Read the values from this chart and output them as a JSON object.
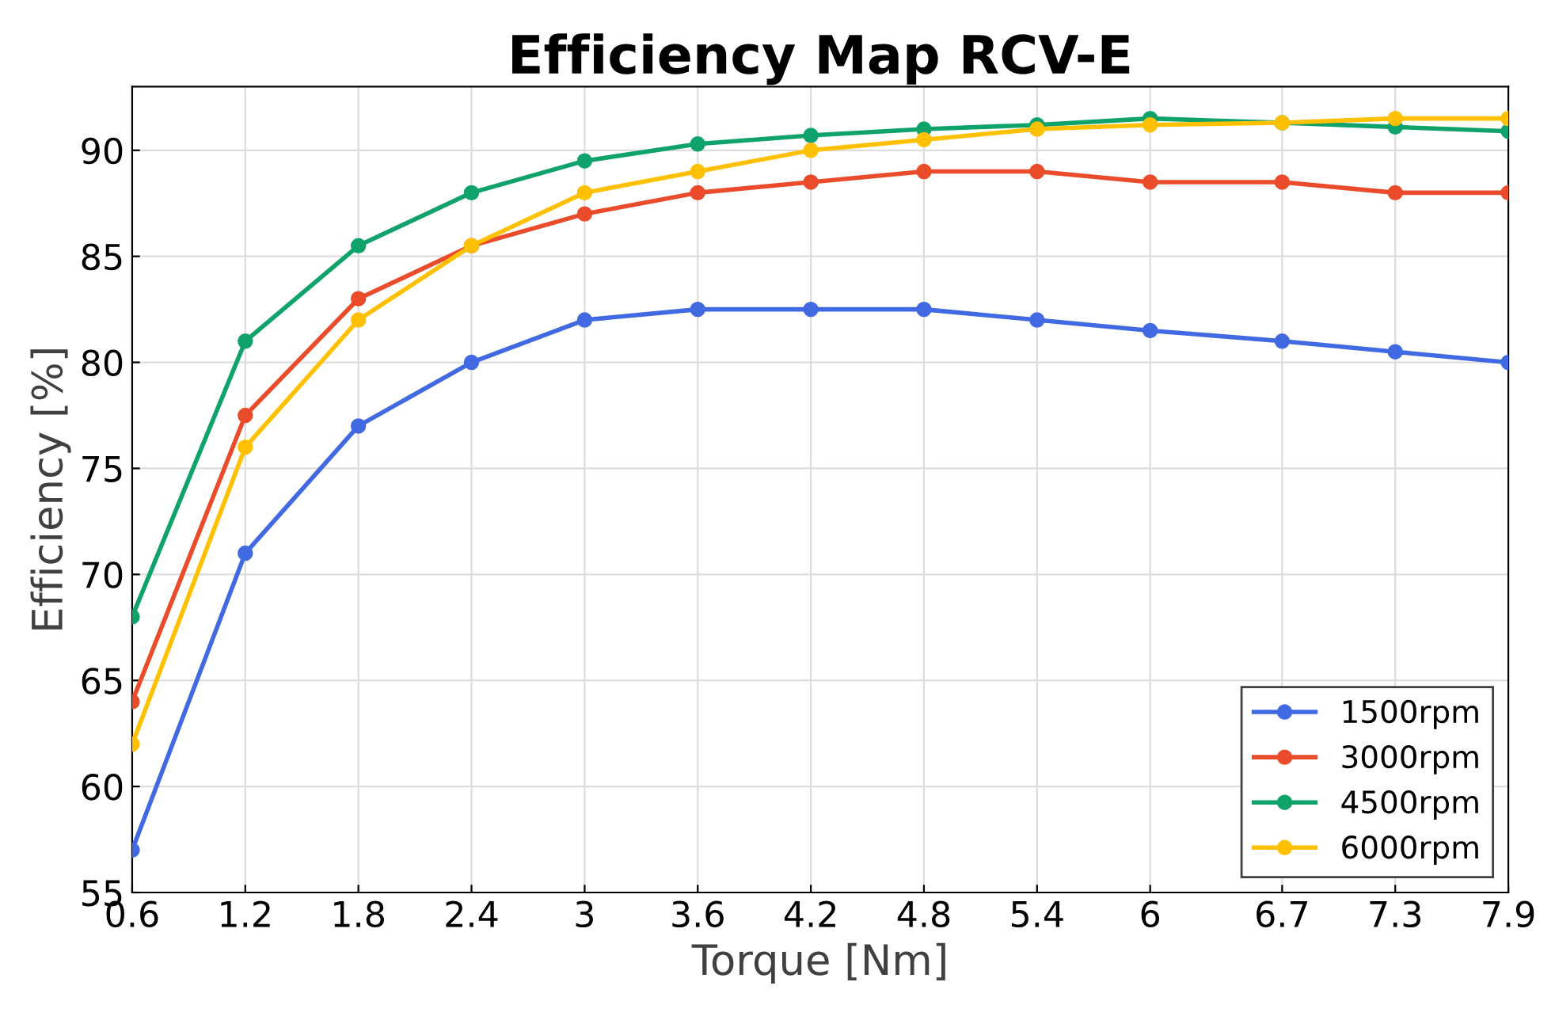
{
  "chart_data": {
    "type": "line",
    "title": "Efficiency Map RCV-E",
    "xlabel": "Torque [Nm]",
    "ylabel": "Efficiency [%]",
    "x": [
      0.6,
      1.2,
      1.8,
      2.4,
      3,
      3.6,
      4.2,
      4.8,
      5.4,
      6,
      6.7,
      7.3,
      7.9
    ],
    "series": [
      {
        "name": "1500rpm",
        "color": "#4169e1",
        "values": [
          57,
          71,
          77,
          80,
          82,
          82.5,
          82.5,
          82.5,
          82,
          81.5,
          81,
          80.5,
          80
        ]
      },
      {
        "name": "3000rpm",
        "color": "#ea4b2a",
        "values": [
          64,
          77.5,
          83,
          85.5,
          87,
          88,
          88.5,
          89,
          89,
          88.5,
          88.5,
          88,
          88
        ]
      },
      {
        "name": "4500rpm",
        "color": "#0fa36b",
        "values": [
          68,
          81,
          85.5,
          88,
          89.5,
          90.3,
          90.7,
          91,
          91.2,
          91.5,
          91.3,
          91.1,
          90.9
        ]
      },
      {
        "name": "6000rpm",
        "color": "#ffc000",
        "values": [
          62,
          76,
          82,
          85.5,
          88,
          89,
          90,
          90.5,
          91,
          91.2,
          91.3,
          91.5,
          91.5
        ]
      }
    ],
    "xlim": [
      0.6,
      7.9
    ],
    "xticks": [
      0.6,
      1.2,
      1.8,
      2.4,
      3,
      3.6,
      4.2,
      4.8,
      5.4,
      6,
      6.7,
      7.3,
      7.9
    ],
    "ylim": [
      55,
      93
    ],
    "yticks": [
      55,
      60,
      65,
      70,
      75,
      80,
      85,
      90
    ],
    "grid": true,
    "legend": "bottom right",
    "marker": "circle",
    "line_style": "solid"
  }
}
